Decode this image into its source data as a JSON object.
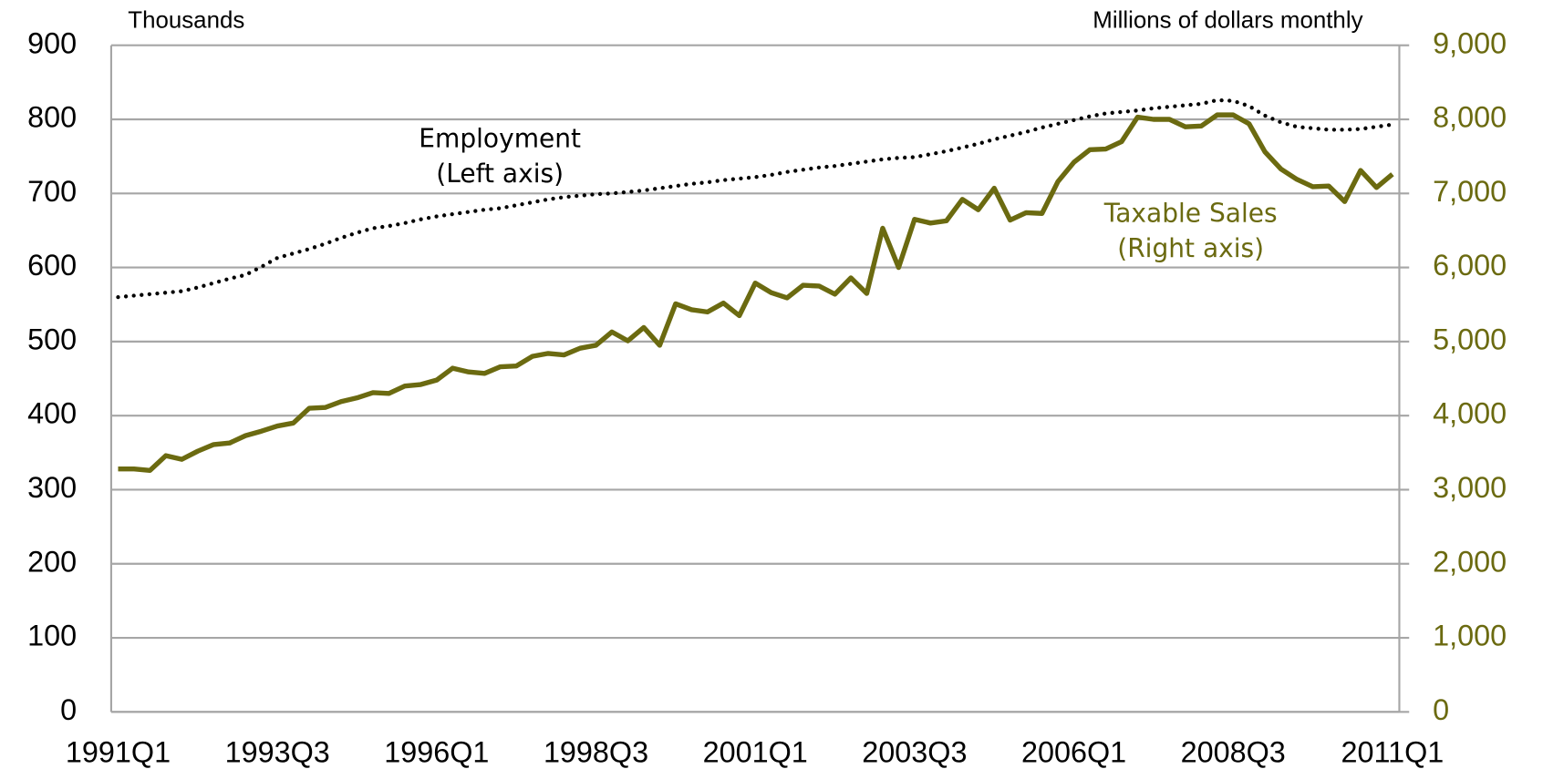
{
  "chart_data": {
    "type": "line",
    "left_unit": "Thousands",
    "right_unit": "Millions of dollars monthly",
    "categories": [
      "1991Q1",
      null,
      null,
      null,
      null,
      null,
      null,
      null,
      null,
      null,
      "1993Q3",
      null,
      null,
      null,
      null,
      null,
      null,
      null,
      null,
      null,
      "1996Q1",
      null,
      null,
      null,
      null,
      null,
      null,
      null,
      null,
      null,
      "1998Q3",
      null,
      null,
      null,
      null,
      null,
      null,
      null,
      null,
      null,
      "2001Q1",
      null,
      null,
      null,
      null,
      null,
      null,
      null,
      null,
      null,
      "2003Q3",
      null,
      null,
      null,
      null,
      null,
      null,
      null,
      null,
      null,
      "2006Q1",
      null,
      null,
      null,
      null,
      null,
      null,
      null,
      null,
      null,
      "2008Q3",
      null,
      null,
      null,
      null,
      null,
      null,
      null,
      null,
      null,
      "2011Q1"
    ],
    "series": [
      {
        "name": "Employment",
        "color": "#000000",
        "style": "dotted",
        "axis": "y",
        "values": [
          560,
          562,
          564,
          566,
          568,
          573,
          579,
          585,
          590,
          601,
          613,
          619,
          625,
          632,
          640,
          647,
          653,
          656,
          660,
          665,
          669,
          672,
          675,
          678,
          680,
          684,
          688,
          692,
          695,
          697,
          699,
          700,
          702,
          704,
          707,
          710,
          713,
          715,
          718,
          720,
          722,
          725,
          729,
          732,
          735,
          737,
          740,
          743,
          746,
          748,
          749,
          753,
          757,
          762,
          767,
          773,
          778,
          783,
          789,
          794,
          799,
          804,
          808,
          810,
          812,
          815,
          817,
          819,
          821,
          826,
          825,
          818,
          805,
          796,
          790,
          788,
          786,
          786,
          787,
          790,
          793
        ]
      },
      {
        "name": "Taxable Sales",
        "color": "#6b6a10",
        "style": "solid",
        "axis": "y2",
        "values": [
          3280,
          3280,
          3260,
          3460,
          3410,
          3520,
          3610,
          3630,
          3730,
          3790,
          3860,
          3900,
          4100,
          4110,
          4190,
          4240,
          4310,
          4300,
          4400,
          4420,
          4480,
          4640,
          4590,
          4570,
          4660,
          4670,
          4800,
          4840,
          4820,
          4910,
          4950,
          5130,
          5010,
          5190,
          4950,
          5510,
          5430,
          5400,
          5520,
          5350,
          5790,
          5660,
          5590,
          5760,
          5750,
          5640,
          5860,
          5650,
          6530,
          6000,
          6650,
          6600,
          6630,
          6920,
          6780,
          7070,
          6640,
          6740,
          6730,
          7160,
          7420,
          7590,
          7600,
          7700,
          8030,
          8000,
          8000,
          7900,
          7910,
          8060,
          8060,
          7940,
          7560,
          7330,
          7190,
          7090,
          7100,
          6890,
          7310,
          7080,
          7260
        ]
      }
    ],
    "annotations": [
      {
        "lines": [
          "Employment",
          "(Left axis)"
        ],
        "series": 0
      },
      {
        "lines": [
          "Taxable Sales",
          "(Right axis)"
        ],
        "series": 1
      }
    ],
    "ylim": [
      0,
      900
    ],
    "yticks": [
      0,
      100,
      200,
      300,
      400,
      500,
      600,
      700,
      800,
      900
    ],
    "y2lim": [
      0,
      9000
    ],
    "y2ticks": [
      0,
      {
        "value": 1000,
        "label": "1,000"
      },
      {
        "value": 2000,
        "label": "2,000"
      },
      {
        "value": 3000,
        "label": "3,000"
      },
      {
        "value": 4000,
        "label": "4,000"
      },
      {
        "value": 5000,
        "label": "5,000"
      },
      {
        "value": 6000,
        "label": "6,000"
      },
      {
        "value": 7000,
        "label": "7,000"
      },
      {
        "value": 8000,
        "label": "8,000"
      },
      {
        "value": 9000,
        "label": "9,000"
      }
    ],
    "y2tick_color": "#6b6a10",
    "grid": true
  }
}
